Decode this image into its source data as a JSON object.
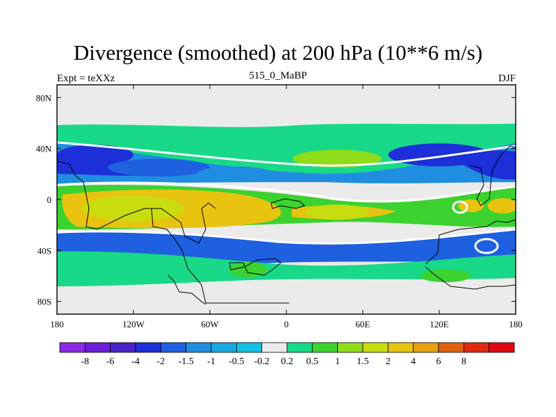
{
  "chart_data": {
    "type": "heatmap",
    "title": "Divergence (smoothed) at 200 hPa (10**6 m/s)",
    "subtitle_left": "Expt = teXXz",
    "subtitle_center": "515_0_MaBP",
    "subtitle_right": "DJF",
    "x_range": [
      -180,
      180
    ],
    "y_range": [
      -90,
      90
    ],
    "x_ticks": [
      {
        "value": -180,
        "label": "180"
      },
      {
        "value": -120,
        "label": "120W"
      },
      {
        "value": -60,
        "label": "60W"
      },
      {
        "value": 0,
        "label": "0"
      },
      {
        "value": 60,
        "label": "60E"
      },
      {
        "value": 120,
        "label": "120E"
      },
      {
        "value": 180,
        "label": "180"
      }
    ],
    "y_ticks": [
      {
        "value": 80,
        "label": "80N"
      },
      {
        "value": 40,
        "label": "40N"
      },
      {
        "value": 0,
        "label": "0"
      },
      {
        "value": -40,
        "label": "40S"
      },
      {
        "value": -80,
        "label": "80S"
      }
    ],
    "colorbar": {
      "colors": [
        "#8a2be2",
        "#6a1fd8",
        "#4b23c8",
        "#1c2fd8",
        "#1e60e0",
        "#1f8de0",
        "#19a8e0",
        "#16c0e0",
        "#ebebeb",
        "#18d987",
        "#3cd230",
        "#8edc1a",
        "#c8dc10",
        "#e8c410",
        "#e8a014",
        "#e06010",
        "#e02a10",
        "#e00810"
      ],
      "labels": [
        "-8",
        "-6",
        "-4",
        "-2",
        "-1.5",
        "-1",
        "-0.5",
        "-0.2",
        "0.2",
        "0.5",
        "1",
        "1.5",
        "2",
        "4",
        "6",
        "8"
      ]
    },
    "field_features": [
      {
        "lon": -150,
        "lat": 35,
        "rx": 30,
        "ry": 8,
        "level": -2
      },
      {
        "lon": -100,
        "lat": 25,
        "rx": 40,
        "ry": 7,
        "level": -1.5
      },
      {
        "lon": -40,
        "lat": 20,
        "rx": 30,
        "ry": 6,
        "level": -1
      },
      {
        "lon": 40,
        "lat": 32,
        "rx": 35,
        "ry": 7,
        "level": 1.5
      },
      {
        "lon": 120,
        "lat": 35,
        "rx": 40,
        "ry": 9,
        "level": -2
      },
      {
        "lon": 165,
        "lat": 30,
        "rx": 15,
        "ry": 6,
        "level": -2
      },
      {
        "lon": -120,
        "lat": -7,
        "rx": 40,
        "ry": 10,
        "level": 2
      },
      {
        "lon": -50,
        "lat": -7,
        "rx": 30,
        "ry": 9,
        "level": 4
      },
      {
        "lon": 40,
        "lat": -10,
        "rx": 25,
        "ry": 6,
        "level": 2
      },
      {
        "lon": 145,
        "lat": -5,
        "rx": 10,
        "ry": 5,
        "level": 4
      },
      {
        "lon": 170,
        "lat": -5,
        "rx": 12,
        "ry": 6,
        "level": 4
      },
      {
        "lon": -30,
        "lat": -55,
        "rx": 15,
        "ry": 6,
        "level": 1
      },
      {
        "lon": 125,
        "lat": -60,
        "rx": 20,
        "ry": 5,
        "level": 1
      }
    ]
  }
}
